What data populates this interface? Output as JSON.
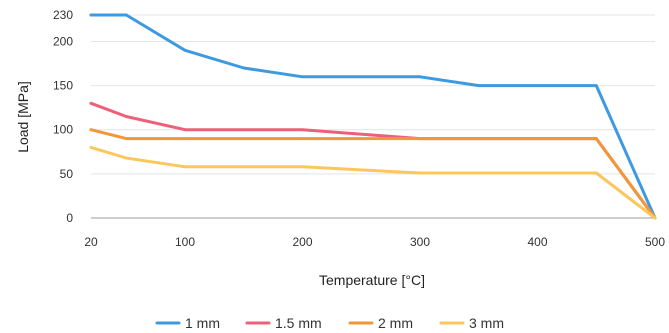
{
  "chart_data": {
    "type": "line",
    "xlabel": "Temperature [°C]",
    "ylabel": "Load [MPa]",
    "xlim": [
      20,
      500
    ],
    "ylim": [
      0,
      230
    ],
    "x_ticks": [
      20,
      100,
      200,
      300,
      400,
      500
    ],
    "y_ticks": [
      0,
      50,
      100,
      150,
      200,
      230
    ],
    "grid": "horizontal",
    "legend_position": "bottom",
    "series": [
      {
        "name": "1 mm",
        "color": "#3d9ae0",
        "points": [
          [
            20,
            230
          ],
          [
            50,
            230
          ],
          [
            100,
            190
          ],
          [
            150,
            170
          ],
          [
            200,
            160
          ],
          [
            300,
            160
          ],
          [
            350,
            150
          ],
          [
            450,
            150
          ],
          [
            500,
            0
          ]
        ]
      },
      {
        "name": "1.5 mm",
        "color": "#ec6078",
        "points": [
          [
            20,
            130
          ],
          [
            50,
            115
          ],
          [
            100,
            100
          ],
          [
            200,
            100
          ],
          [
            300,
            90
          ],
          [
            450,
            90
          ],
          [
            500,
            0
          ]
        ]
      },
      {
        "name": "2 mm",
        "color": "#f29737",
        "points": [
          [
            20,
            100
          ],
          [
            50,
            90
          ],
          [
            100,
            90
          ],
          [
            200,
            90
          ],
          [
            300,
            90
          ],
          [
            450,
            90
          ],
          [
            500,
            0
          ]
        ]
      },
      {
        "name": "3 mm",
        "color": "#fbc75c",
        "points": [
          [
            20,
            80
          ],
          [
            50,
            68
          ],
          [
            100,
            58
          ],
          [
            200,
            58
          ],
          [
            300,
            51
          ],
          [
            450,
            51
          ],
          [
            500,
            0
          ]
        ]
      }
    ]
  }
}
